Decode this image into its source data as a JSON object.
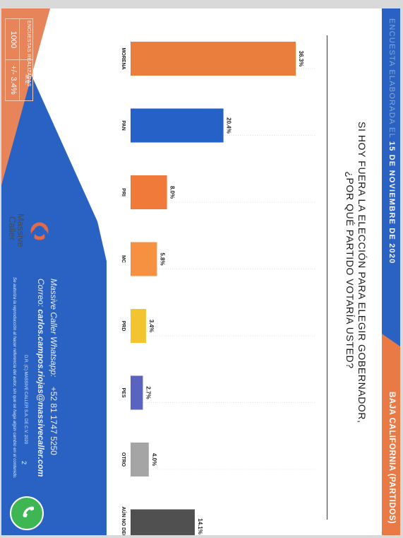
{
  "header": {
    "survey_date_prefix": "ENCUESTA ELABORADA EL",
    "survey_date": "15 DE NOVIEMBRE DE 2020",
    "region": "BAJA CALIFORNIA (PARTIDOS)"
  },
  "title": {
    "line1": "SI HOY FUERA LA ELECCIÓN PARA ELEGIR GOBERNADOR,",
    "line2": "¿POR QUÉ PARTIDO VOTARÍA USTED?"
  },
  "chart_data": {
    "type": "bar",
    "categories": [
      "MORENA",
      "PAN",
      "PRI",
      "MC",
      "PRD",
      "PES",
      "OTRO",
      "AÚN NO DECIDE"
    ],
    "values": [
      36.3,
      20.4,
      8.0,
      5.8,
      3.4,
      2.7,
      4.0,
      14.1
    ],
    "value_labels": [
      "36.3%",
      "20.4%",
      "8.0%",
      "5.8%",
      "3.4%",
      "2.7%",
      "4.0%",
      "14.1%"
    ],
    "colors": [
      "#ea7f3d",
      "#2661c8",
      "#f07a3a",
      "#f59140",
      "#f2c430",
      "#5a63bd",
      "#a5a5a5",
      "#4f504f"
    ],
    "title": "SI HOY FUERA LA ELECCIÓN PARA ELEGIR GOBERNADOR, ¿POR QUÉ PARTIDO VOTARÍA USTED?",
    "xlabel": "",
    "ylabel": "",
    "ylim": [
      0,
      40
    ]
  },
  "stats": {
    "sample_label": "ENCUESTAS REALIZADAS",
    "sample_value": "1000",
    "moe_label": "M.E.",
    "moe_value": "+/- 3.4%"
  },
  "brand": {
    "name_line1": "Massive",
    "name_line2": "Caller"
  },
  "contact": {
    "whatsapp_label": "Massive Caller Whatsapp:",
    "whatsapp_number": "+52 81 1747 5250",
    "email_label": "Correo:",
    "email": "carlos.campos.riojas@massivecaller.com",
    "copyright": "D.R. (C) MASSIVE CALLER S.A. DE C.V. 2020",
    "page_number": "2",
    "disclaimer": "Se autoriza la reproducción al hacer referencia del autor, sin que se haga algún cambio en el contenido."
  },
  "colors": {
    "blue": "#2a62c3",
    "orange": "#ea7a45",
    "whatsapp": "#3fb654"
  },
  "icons": {
    "logo": "massive-caller-logo-icon",
    "whatsapp": "whatsapp-icon"
  }
}
